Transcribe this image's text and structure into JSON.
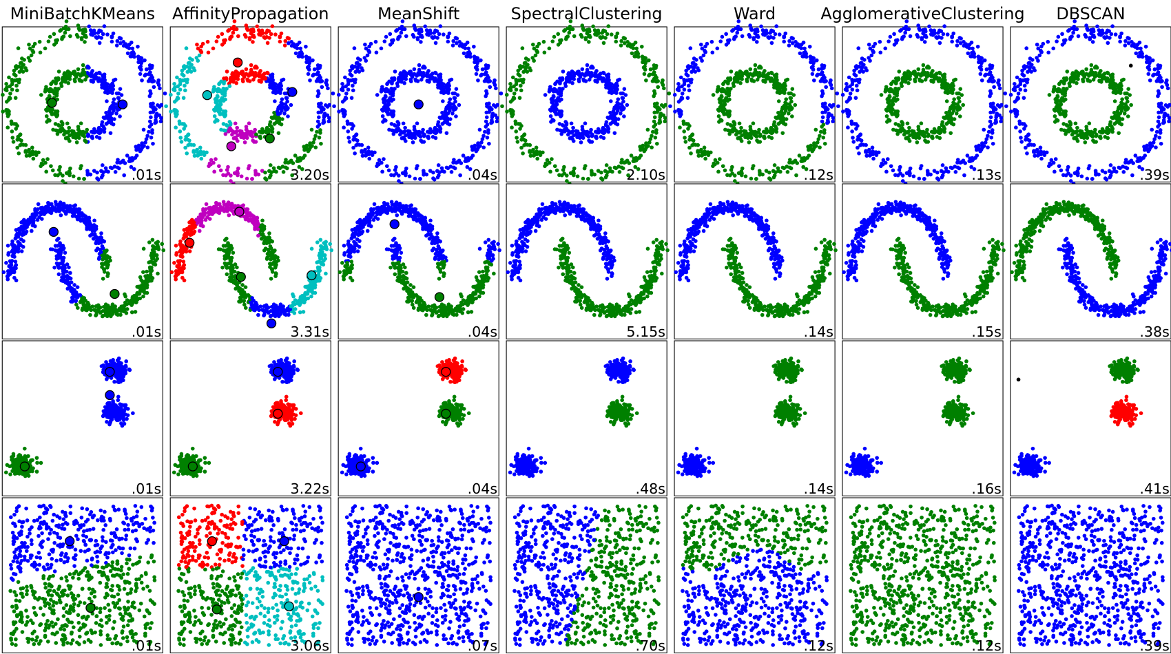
{
  "figure": {
    "titles": [
      "MiniBatchKMeans",
      "AffinityPropagation",
      "MeanShift",
      "SpectralClustering",
      "Ward",
      "AgglomerativeClustering",
      "DBSCAN"
    ],
    "times": [
      [
        ".01s",
        "3.20s",
        ".04s",
        "2.10s",
        ".12s",
        ".13s",
        ".39s"
      ],
      [
        ".01s",
        "3.31s",
        ".04s",
        "5.15s",
        ".14s",
        ".15s",
        ".38s"
      ],
      [
        ".01s",
        "3.22s",
        ".04s",
        ".48s",
        ".14s",
        ".16s",
        ".41s"
      ],
      [
        ".01s",
        "3.06s",
        ".07s",
        ".70s",
        ".12s",
        ".12s",
        ".39s"
      ]
    ]
  }
}
